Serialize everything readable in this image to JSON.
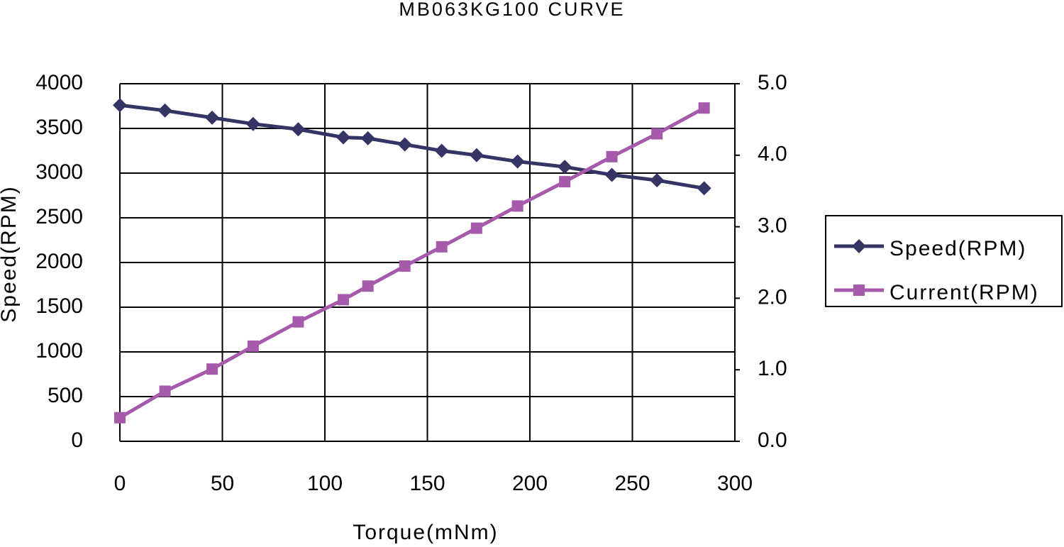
{
  "chart_data": {
    "type": "line",
    "title": "MB063KG100 CURVE",
    "xlabel": "Torque(mNm)",
    "ylabel": "Speed(RPM)",
    "x": [
      0,
      22,
      45,
      65,
      87,
      109,
      121,
      139,
      157,
      174,
      194,
      217,
      240,
      262,
      285
    ],
    "series": [
      {
        "name": "Speed(RPM)",
        "color": "#353565",
        "marker": "diamond",
        "values": [
          3760,
          3700,
          3620,
          3550,
          3490,
          3400,
          3390,
          3320,
          3250,
          3200,
          3130,
          3070,
          2980,
          2920,
          2830
        ]
      },
      {
        "name": "Current(RPM)",
        "color": "#a55aab",
        "marker": "square",
        "axis": "y2",
        "values": [
          0.33,
          0.7,
          1.01,
          1.33,
          1.67,
          1.98,
          2.17,
          2.45,
          2.72,
          2.98,
          3.29,
          3.63,
          3.98,
          4.3,
          4.66
        ]
      }
    ],
    "xlim": [
      0,
      300
    ],
    "xticks": [
      0,
      50,
      100,
      150,
      200,
      250,
      300
    ],
    "ylim": [
      0,
      4000
    ],
    "yticks": [
      0,
      500,
      1000,
      1500,
      2000,
      2500,
      3000,
      3500,
      4000
    ],
    "y2lim": [
      0,
      5
    ],
    "y2ticks": [
      {
        "value": 0,
        "label": "0.0"
      },
      {
        "value": 1,
        "label": "1.0"
      },
      {
        "value": 2,
        "label": "2.0"
      },
      {
        "value": 3,
        "label": "3.0"
      },
      {
        "value": 4,
        "label": "4.0"
      },
      {
        "value": 5,
        "label": "5.0"
      }
    ],
    "grid": true,
    "legend": "right"
  }
}
